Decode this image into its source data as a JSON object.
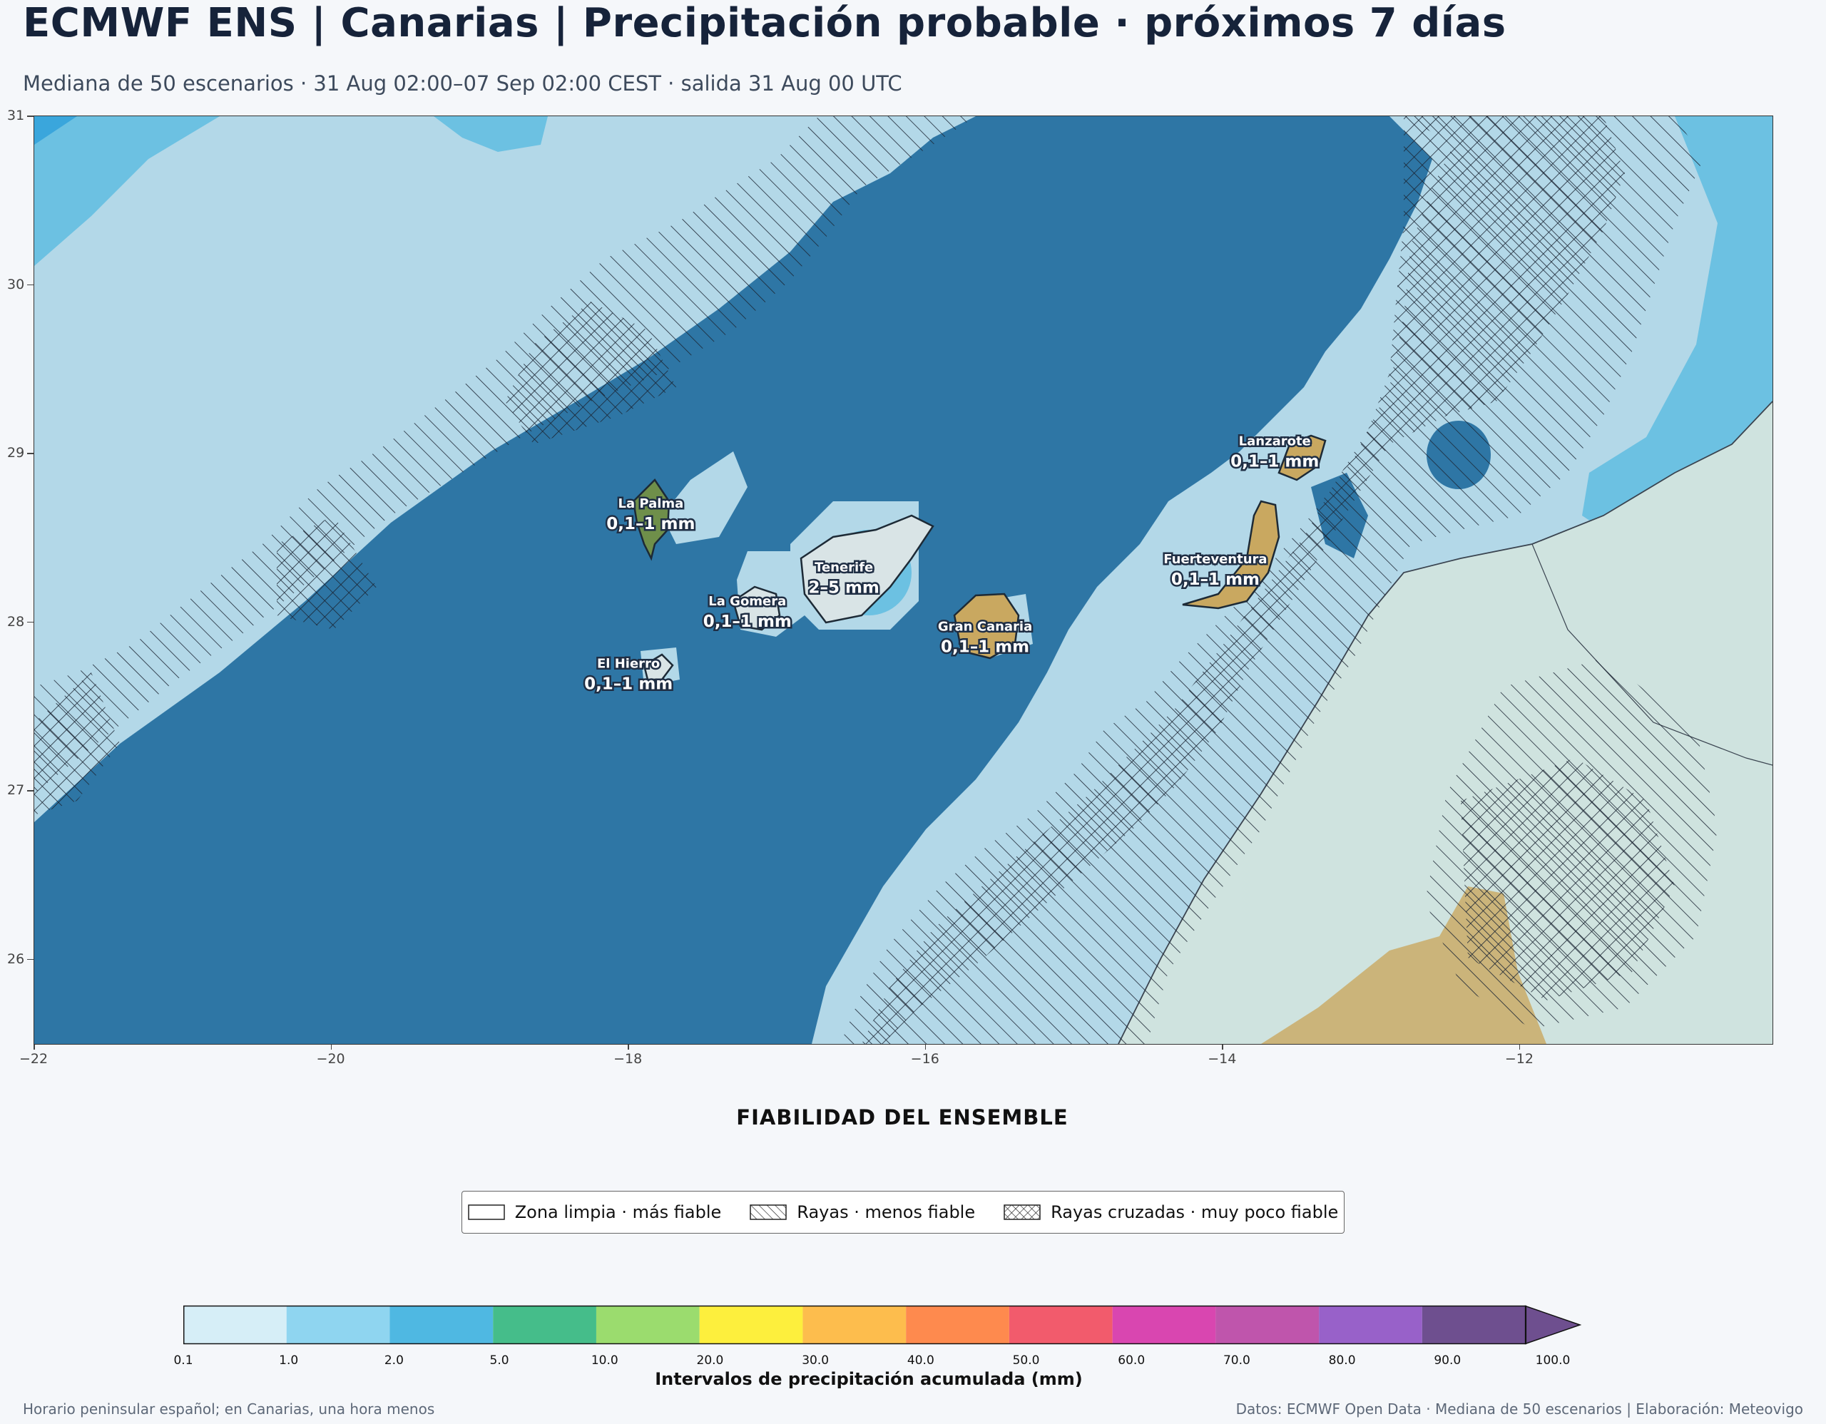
{
  "header": {
    "title": "ECMWF ENS | Canarias | Precipitación probable · próximos 7 días",
    "subtitle": "Mediana de 50 escenarios · 31 Aug 02:00–07 Sep 02:00 CEST · salida 31 Aug 00 UTC"
  },
  "map": {
    "lon_range": [
      -22,
      -10.3
    ],
    "lat_range": [
      25.5,
      31
    ],
    "x_ticks": [
      "−22",
      "−20",
      "−18",
      "−16",
      "−14",
      "−12"
    ],
    "y_ticks": [
      "31",
      "30",
      "29",
      "28",
      "27",
      "26"
    ],
    "colors": {
      "ocean_dark": "#2e76a5",
      "precip_light": "#b3d8e8",
      "precip_mid": "#6cc1e2",
      "precip_blue": "#3aa6dc",
      "land_africa": "#cfe3df",
      "island_sand": "#c9a860",
      "island_green": "#6f8f4a"
    },
    "islands": [
      {
        "name": "La Palma",
        "value": "0,1–1 mm",
        "lon": -17.85,
        "lat": 28.68
      },
      {
        "name": "Tenerife",
        "value": "2–5 mm",
        "lon": -16.55,
        "lat": 28.3
      },
      {
        "name": "La Gomera",
        "value": "0,1–1 mm",
        "lon": -17.2,
        "lat": 28.1
      },
      {
        "name": "El Hierro",
        "value": "0,1–1 mm",
        "lon": -18.0,
        "lat": 27.73
      },
      {
        "name": "Gran Canaria",
        "value": "0,1–1 mm",
        "lon": -15.6,
        "lat": 27.95
      },
      {
        "name": "Lanzarote",
        "value": "0,1–1 mm",
        "lon": -13.65,
        "lat": 29.05
      },
      {
        "name": "Fuerteventura",
        "value": "0,1–1 mm",
        "lon": -14.05,
        "lat": 28.35
      }
    ]
  },
  "reliability_legend": {
    "title": "FIABILIDAD DEL ENSEMBLE",
    "items": [
      {
        "label": "Zona limpia · más fiable",
        "pattern": "none"
      },
      {
        "label": "Rayas · menos fiable",
        "pattern": "diagonal"
      },
      {
        "label": "Rayas cruzadas · muy poco fiable",
        "pattern": "cross"
      }
    ]
  },
  "colorbar": {
    "title": "Intervalos de precipitación acumulada (mm)",
    "ticks": [
      "0.1",
      "1.0",
      "2.0",
      "5.0",
      "10.0",
      "20.0",
      "30.0",
      "40.0",
      "50.0",
      "60.0",
      "70.0",
      "80.0",
      "90.0",
      "100.0"
    ],
    "colors": [
      "#d6eef7",
      "#8fd5f0",
      "#4fb8e2",
      "#45bd8a",
      "#9bdc6e",
      "#fdef3d",
      "#fdbd4d",
      "#fe8a4e",
      "#f25b6c",
      "#d946b0",
      "#bf55ac",
      "#9861c9",
      "#6e4f8f"
    ],
    "extend_color": "#6e4f8f"
  },
  "footer": {
    "left": "Horario peninsular español; en Canarias, una hora menos",
    "right": "Datos: ECMWF Open Data · Mediana de 50 escenarios | Elaboración: Meteovigo"
  }
}
